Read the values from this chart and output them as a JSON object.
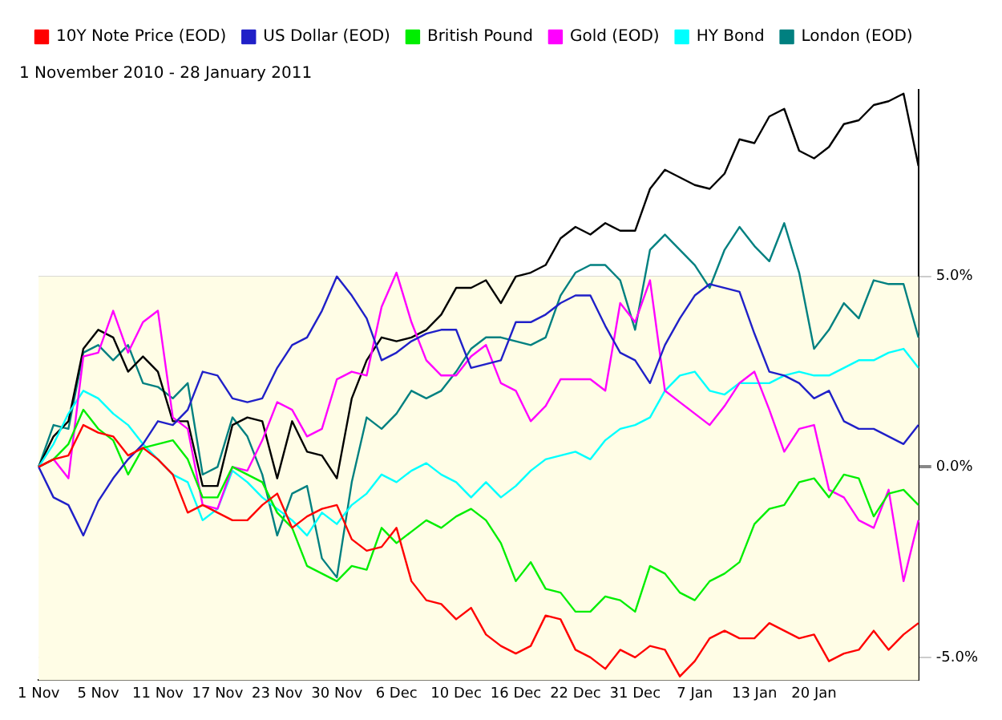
{
  "chart_data": {
    "type": "line",
    "title": "1 November 2010 - 28 January 2011",
    "categories": [
      "1 Nov",
      null,
      null,
      null,
      "5 Nov",
      null,
      null,
      null,
      "11 Nov",
      null,
      null,
      null,
      "17 Nov",
      null,
      null,
      null,
      "23 Nov",
      null,
      null,
      null,
      "30 Nov",
      null,
      null,
      null,
      "6 Dec",
      null,
      null,
      null,
      "10 Dec",
      null,
      null,
      null,
      "16 Dec",
      null,
      null,
      null,
      "22 Dec",
      null,
      null,
      null,
      "31 Dec",
      null,
      null,
      null,
      "7 Jan",
      null,
      null,
      null,
      "13 Jan",
      null,
      null,
      null,
      "20 Jan",
      null,
      null,
      null,
      null,
      null,
      null,
      null
    ],
    "series": [
      {
        "name": "10Y Note Price (EOD)",
        "color": "#ff0000",
        "values": [
          0,
          0.2,
          0.3,
          1.1,
          0.9,
          0.8,
          0.3,
          0.5,
          0.2,
          -0.2,
          -1.2,
          -1.0,
          -1.2,
          -1.4,
          -1.4,
          -1.0,
          -0.7,
          -1.6,
          -1.3,
          -1.1,
          -1.0,
          -1.9,
          -2.2,
          -2.1,
          -1.6,
          -3.0,
          -3.5,
          -3.6,
          -4.0,
          -3.7,
          -4.4,
          -4.7,
          -4.9,
          -4.7,
          -3.9,
          -4.0,
          -4.8,
          -5.0,
          -5.3,
          -4.8,
          -5.0,
          -4.7,
          -4.8,
          -5.5,
          -5.1,
          -4.5,
          -4.3,
          -4.5,
          -4.5,
          -4.1,
          -4.3,
          -4.5,
          -4.4,
          -5.1,
          -4.9,
          -4.8,
          -4.3,
          -4.8,
          -4.4,
          -4.1
        ]
      },
      {
        "name": "US Dollar (EOD)",
        "color": "#2020c8",
        "values": [
          0,
          -0.8,
          -1.0,
          -1.8,
          -0.9,
          -0.3,
          0.2,
          0.6,
          1.2,
          1.1,
          1.5,
          2.5,
          2.4,
          1.8,
          1.7,
          1.8,
          2.6,
          3.2,
          3.4,
          4.1,
          5.0,
          4.5,
          3.9,
          2.8,
          3.0,
          3.3,
          3.5,
          3.6,
          3.6,
          2.6,
          2.7,
          2.8,
          3.8,
          3.8,
          4.0,
          4.3,
          4.5,
          4.5,
          3.7,
          3.0,
          2.8,
          2.2,
          3.2,
          3.9,
          4.5,
          4.8,
          4.7,
          4.6,
          3.5,
          2.5,
          2.4,
          2.2,
          1.8,
          2.0,
          1.2,
          1.0,
          1.0,
          0.8,
          0.6,
          1.1
        ]
      },
      {
        "name": "British Pound",
        "color": "#00ee00",
        "values": [
          0,
          0.2,
          0.6,
          1.5,
          1.0,
          0.7,
          -0.2,
          0.5,
          0.6,
          0.7,
          0.2,
          -0.8,
          -0.8,
          0,
          -0.2,
          -0.4,
          -1.2,
          -1.6,
          -2.6,
          -2.8,
          -3.0,
          -2.6,
          -2.7,
          -1.6,
          -2.0,
          -1.7,
          -1.4,
          -1.6,
          -1.3,
          -1.1,
          -1.4,
          -2.0,
          -3.0,
          -2.5,
          -3.2,
          -3.3,
          -3.8,
          -3.8,
          -3.4,
          -3.5,
          -3.8,
          -2.6,
          -2.8,
          -3.3,
          -3.5,
          -3.0,
          -2.8,
          -2.5,
          -1.5,
          -1.1,
          -1.0,
          -0.4,
          -0.3,
          -0.8,
          -0.2,
          -0.3,
          -1.3,
          -0.7,
          -0.6,
          -1.0
        ]
      },
      {
        "name": "Gold (EOD)",
        "color": "#ff00ff",
        "values": [
          0,
          0.2,
          -0.3,
          2.9,
          3.0,
          4.1,
          3.0,
          3.8,
          4.1,
          1.3,
          1.0,
          -1.0,
          -1.1,
          0,
          -0.1,
          0.7,
          1.7,
          1.5,
          0.8,
          1.0,
          2.3,
          2.5,
          2.4,
          4.2,
          5.1,
          3.8,
          2.8,
          2.4,
          2.4,
          2.9,
          3.2,
          2.2,
          2.0,
          1.2,
          1.6,
          2.3,
          2.3,
          2.3,
          2.0,
          4.3,
          3.8,
          4.9,
          2.0,
          1.7,
          1.4,
          1.1,
          1.6,
          2.2,
          2.5,
          1.5,
          0.4,
          1.0,
          1.1,
          -0.6,
          -0.8,
          -1.4,
          -1.6,
          -0.6,
          -3.0,
          -1.4
        ]
      },
      {
        "name": "HY Bond",
        "color": "#00ffff",
        "values": [
          0,
          0.6,
          1.4,
          2.0,
          1.8,
          1.4,
          1.1,
          0.6,
          0.2,
          -0.2,
          -0.4,
          -1.4,
          -1.1,
          -0.1,
          -0.4,
          -0.8,
          -1.1,
          -1.4,
          -1.8,
          -1.2,
          -1.5,
          -1.0,
          -0.7,
          -0.2,
          -0.4,
          -0.1,
          0.1,
          -0.2,
          -0.4,
          -0.8,
          -0.4,
          -0.8,
          -0.5,
          -0.1,
          0.2,
          0.3,
          0.4,
          0.2,
          0.7,
          1.0,
          1.1,
          1.3,
          2.0,
          2.4,
          2.5,
          2.0,
          1.9,
          2.2,
          2.2,
          2.2,
          2.4,
          2.5,
          2.4,
          2.4,
          2.6,
          2.8,
          2.8,
          3.0,
          3.1,
          2.6
        ]
      },
      {
        "color": "#000000",
        "values": [
          0,
          0.8,
          1.2,
          3.1,
          3.6,
          3.4,
          2.5,
          2.9,
          2.5,
          1.2,
          1.2,
          -0.5,
          -0.5,
          1.1,
          1.3,
          1.2,
          -0.3,
          1.2,
          0.4,
          0.3,
          -0.3,
          1.8,
          2.8,
          3.4,
          3.3,
          3.4,
          3.6,
          4.0,
          4.7,
          4.7,
          4.9,
          4.3,
          5.0,
          5.1,
          5.3,
          6.0,
          6.3,
          6.1,
          6.4,
          6.2,
          6.2,
          7.3,
          7.8,
          7.6,
          7.4,
          7.3,
          7.7,
          8.6,
          8.5,
          9.2,
          9.4,
          8.3,
          8.1,
          8.4,
          9.0,
          9.1,
          9.5,
          9.6,
          9.8,
          7.9
        ]
      },
      {
        "name": "London (EOD)",
        "color": "#008080",
        "values": [
          0,
          1.1,
          1.0,
          3.0,
          3.2,
          2.8,
          3.2,
          2.2,
          2.1,
          1.8,
          2.2,
          -0.2,
          0,
          1.3,
          0.8,
          -0.2,
          -1.8,
          -0.7,
          -0.5,
          -2.4,
          -2.9,
          -0.4,
          1.3,
          1.0,
          1.4,
          2.0,
          1.8,
          2.0,
          2.5,
          3.1,
          3.4,
          3.4,
          3.3,
          3.2,
          3.4,
          4.5,
          5.1,
          5.3,
          5.3,
          4.9,
          3.6,
          5.7,
          6.1,
          5.7,
          5.3,
          4.7,
          5.7,
          6.3,
          5.8,
          5.4,
          6.4,
          5.1,
          3.1,
          3.6,
          4.3,
          3.9,
          4.9,
          4.8,
          4.8,
          3.4
        ]
      }
    ],
    "ylim": [
      -5.6,
      9.9
    ],
    "yticks": [
      {
        "value": -5,
        "label": "-5.0%"
      },
      {
        "value": 0,
        "label": "0.0%"
      },
      {
        "value": 5,
        "label": "5.0%"
      }
    ],
    "bands": [
      {
        "axis": "y",
        "from": -5.6,
        "to": 5,
        "color": "#fffde6"
      }
    ],
    "grid": "y",
    "legend": "top",
    "marker": "none",
    "line_style": "solid"
  }
}
